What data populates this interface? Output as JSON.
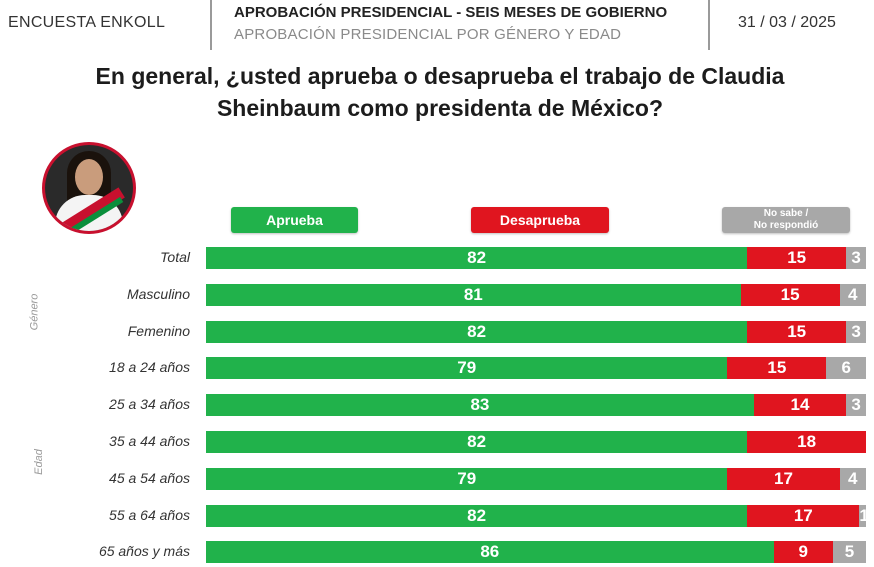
{
  "header": {
    "brand": "ENCUESTA ENKOLL",
    "title": "APROBACIÓN PRESIDENCIAL - SEIS MESES DE GOBIERNO",
    "subtitle": "APROBACIÓN PRESIDENCIAL POR GÉNERO Y EDAD",
    "date": "31 / 03 / 2025"
  },
  "question": {
    "line1": "En general, ¿usted aprueba o desaprueba el trabajo de Claudia",
    "line2": "Sheinbaum como presidenta de México?"
  },
  "colors": {
    "aprueba": "#21b24b",
    "desaprueba": "#e0151f",
    "no_sabe": "#a8a8a8"
  },
  "legend": {
    "aprueba": "Aprueba",
    "desaprueba": "Desaprueba",
    "no_sabe_line1": "No sabe  /",
    "no_sabe_line2": "No respondió"
  },
  "groups": {
    "genero": "Género",
    "edad": "Edad"
  },
  "chart_data": {
    "type": "bar",
    "orientation": "horizontal",
    "stacked": true,
    "categories": [
      "Total",
      "Masculino",
      "Femenino",
      "18 a 24 años",
      "25 a 34 años",
      "35 a 44 años",
      "45 a 54 años",
      "55 a 64 años",
      "65 años y más"
    ],
    "series": [
      {
        "name": "Aprueba",
        "values": [
          82,
          81,
          82,
          79,
          83,
          82,
          79,
          82,
          86
        ]
      },
      {
        "name": "Desaprueba",
        "values": [
          15,
          15,
          15,
          15,
          14,
          18,
          17,
          17,
          9
        ]
      },
      {
        "name": "No sabe / No respondió",
        "values": [
          3,
          4,
          3,
          6,
          3,
          0,
          4,
          1,
          5
        ]
      }
    ],
    "xlim": [
      0,
      100
    ],
    "legend_position": "top"
  }
}
